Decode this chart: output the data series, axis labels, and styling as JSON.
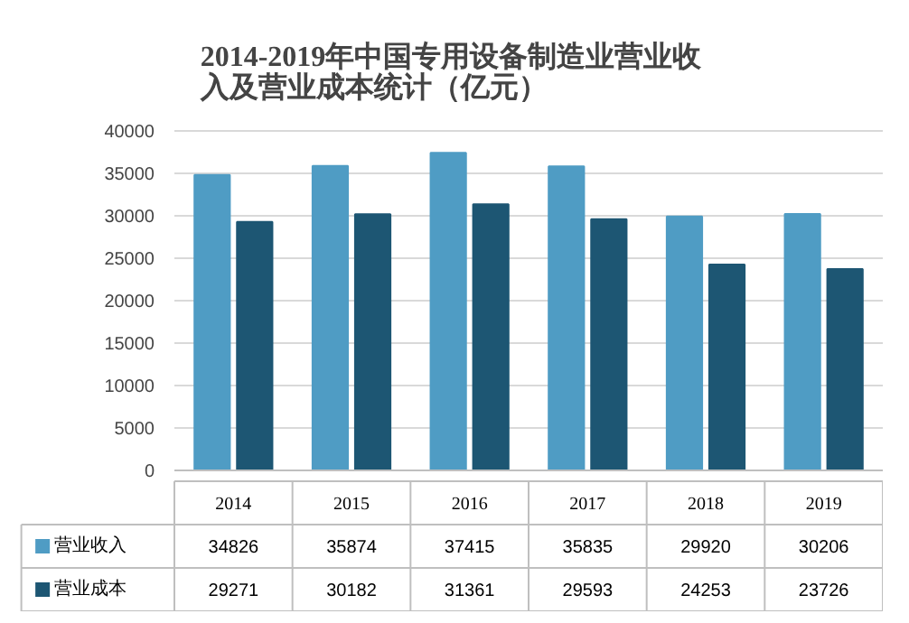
{
  "chart_data": {
    "type": "bar",
    "title": "2014-2019年中国专用设备制造业营业收入及营业成本统计（亿元）",
    "categories": [
      "2014",
      "2015",
      "2016",
      "2017",
      "2018",
      "2019"
    ],
    "series": [
      {
        "name": "营业收入",
        "color": "#4f9cc4",
        "values": [
          34826,
          35874,
          37415,
          35835,
          29920,
          30206
        ]
      },
      {
        "name": "营业成本",
        "color": "#1d5673",
        "values": [
          29271,
          30182,
          31361,
          29593,
          24253,
          23726
        ]
      }
    ],
    "ylim": [
      0,
      40000
    ],
    "yticks": [
      0,
      5000,
      10000,
      15000,
      20000,
      25000,
      30000,
      35000,
      40000
    ],
    "grid": "y",
    "data_labels": true,
    "legend": "bottom left"
  }
}
